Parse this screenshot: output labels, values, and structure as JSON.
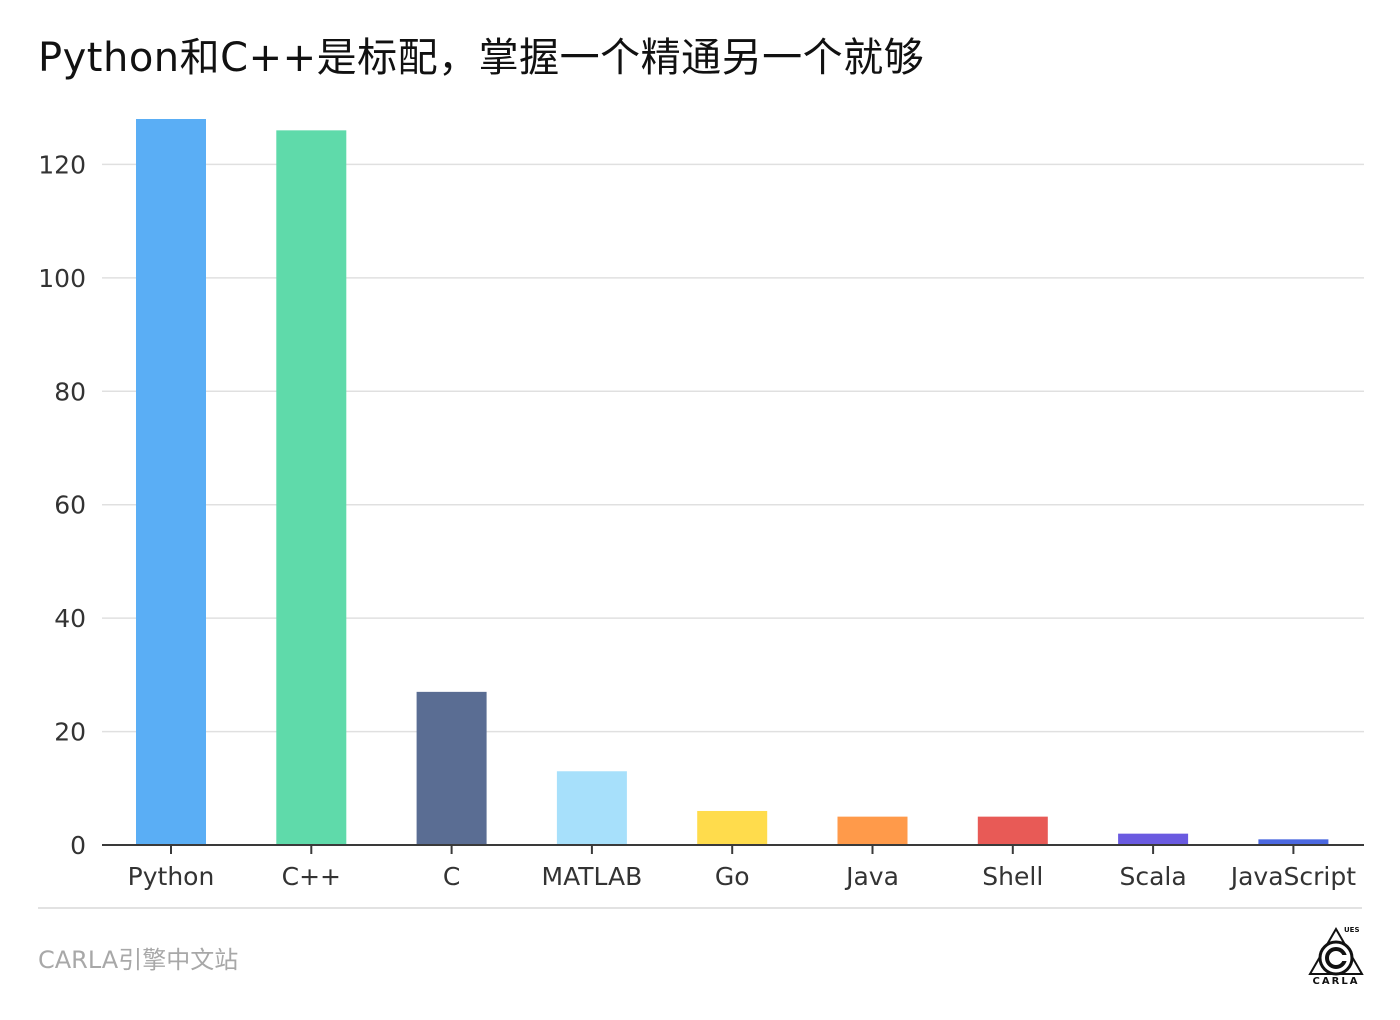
{
  "title": "Python和C++是标配，掌握一个精通另一个就够",
  "footer": {
    "source": "CARLA引擎中文站",
    "logo_text": "CARLA",
    "logo_sup": "UES"
  },
  "chart_data": {
    "type": "bar",
    "categories": [
      "Python",
      "C++",
      "C",
      "MATLAB",
      "Go",
      "Java",
      "Shell",
      "Scala",
      "JavaScript"
    ],
    "values": [
      128,
      126,
      27,
      13,
      6,
      5,
      5,
      2,
      1
    ],
    "colors": [
      "#5aaef5",
      "#5fdaaa",
      "#5a6d93",
      "#a7e0fb",
      "#ffdc4c",
      "#ff9a4a",
      "#e85a56",
      "#6a5ae0",
      "#4b68e0"
    ],
    "ylim": [
      0,
      128
    ],
    "yticks": [
      0,
      20,
      40,
      60,
      80,
      100,
      120
    ],
    "grid": true,
    "xlabel": "",
    "ylabel": ""
  }
}
